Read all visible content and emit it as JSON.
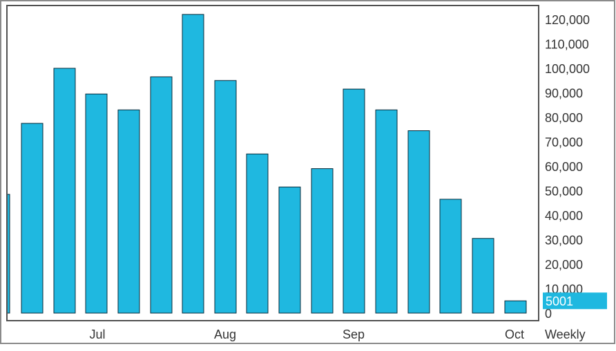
{
  "colors": {
    "bar_fill": "#1fb8e0",
    "bar_stroke": "#0a2a38",
    "frame": "#505050",
    "text": "#333333",
    "last_value_fill": "#1fb8e0",
    "last_value_text": "#ffffff"
  },
  "period_label": "Weekly",
  "last_value_label": "5001",
  "chart_data": {
    "type": "bar",
    "title": "",
    "xlabel": "",
    "ylabel": "",
    "ylim": [
      0,
      127000
    ],
    "y_axis_position": "right",
    "grid": false,
    "y_ticks": [
      "0",
      "10,000",
      "20,000",
      "30,000",
      "40,000",
      "50,000",
      "60,000",
      "70,000",
      "80,000",
      "90,000",
      "100,000",
      "110,000",
      "120,000"
    ],
    "x_month_labels": [
      "Jul",
      "Aug",
      "Sep",
      "Oct"
    ],
    "values": [
      48500,
      77500,
      100000,
      89500,
      83000,
      96500,
      122000,
      95000,
      65000,
      51500,
      59000,
      91500,
      83000,
      74500,
      46500,
      30500,
      5001
    ],
    "last_value": 5001
  }
}
